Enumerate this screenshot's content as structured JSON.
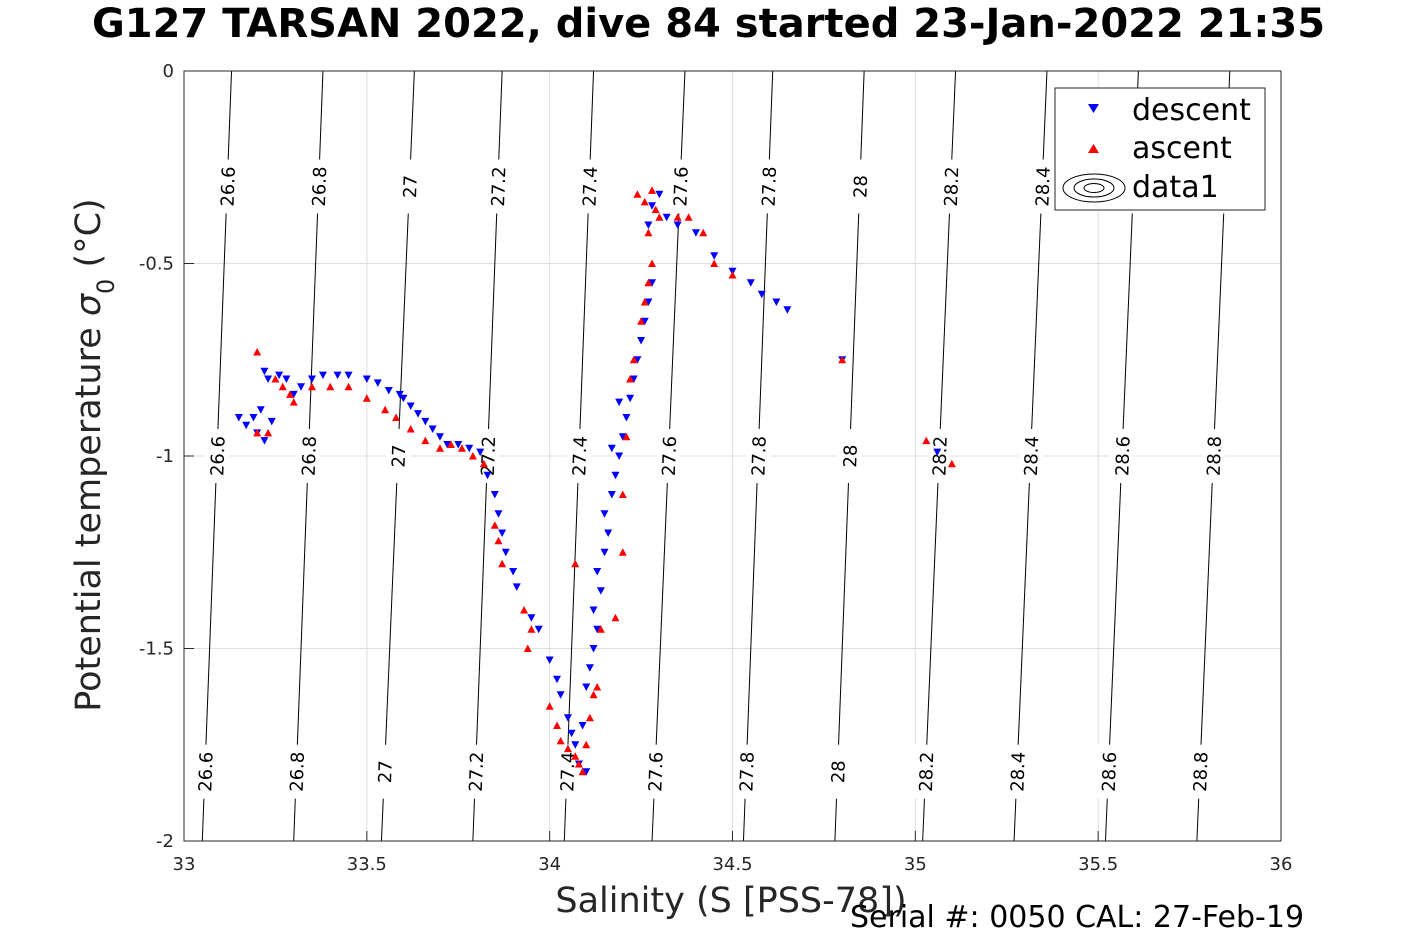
{
  "chart_data": {
    "type": "scatter",
    "title": "G127 TARSAN 2022, dive 84 started 23-Jan-2022 21:35",
    "xlabel": "Salinity (S [PSS-78])",
    "ylabel_main": "Potential temperature ",
    "ylabel_sigma": "σ",
    "ylabel_sub": "0",
    "ylabel_unit": " (°C)",
    "footer": "Serial #: 0050  CAL: 27-Feb-19",
    "xlim": [
      33,
      36
    ],
    "ylim": [
      -2,
      0
    ],
    "x_ticks": [
      "33",
      "33.5",
      "34",
      "34.5",
      "35",
      "35.5",
      "36"
    ],
    "y_ticks": [
      "0",
      "-0.5",
      "-1",
      "-1.5",
      "-2"
    ],
    "grid": true,
    "legend": {
      "position": "top-right",
      "entries": [
        {
          "label": "descent",
          "color": "#0000ff",
          "marker": "triangle-down"
        },
        {
          "label": "ascent",
          "color": "#ff0000",
          "marker": "triangle-up"
        },
        {
          "label": "data1",
          "color": "#000000",
          "marker": "contour"
        }
      ]
    },
    "contours": {
      "levels": [
        "26.6",
        "26.8",
        "27",
        "27.2",
        "27.4",
        "27.6",
        "27.8",
        "28",
        "28.2",
        "28.4",
        "28.6",
        "28.8"
      ],
      "x_at_top": [
        33.13,
        33.38,
        33.63,
        33.87,
        34.12,
        34.37,
        34.61,
        34.86,
        35.11,
        35.36,
        35.61,
        35.86
      ],
      "x_at_bottom": [
        33.05,
        33.3,
        33.54,
        33.79,
        34.04,
        34.28,
        34.53,
        34.78,
        35.02,
        35.27,
        35.52,
        35.77
      ]
    },
    "series": [
      {
        "name": "descent",
        "color": "#0000ff",
        "marker": "triangle-down",
        "points": [
          [
            33.15,
            -0.9
          ],
          [
            33.17,
            -0.92
          ],
          [
            33.19,
            -0.9
          ],
          [
            33.2,
            -0.94
          ],
          [
            33.22,
            -0.96
          ],
          [
            33.21,
            -0.88
          ],
          [
            33.24,
            -0.91
          ],
          [
            33.22,
            -0.78
          ],
          [
            33.23,
            -0.8
          ],
          [
            33.26,
            -0.79
          ],
          [
            33.28,
            -0.8
          ],
          [
            33.3,
            -0.84
          ],
          [
            33.32,
            -0.82
          ],
          [
            33.35,
            -0.8
          ],
          [
            33.38,
            -0.79
          ],
          [
            33.42,
            -0.79
          ],
          [
            33.45,
            -0.79
          ],
          [
            33.5,
            -0.8
          ],
          [
            33.53,
            -0.81
          ],
          [
            33.56,
            -0.83
          ],
          [
            33.59,
            -0.84
          ],
          [
            33.6,
            -0.85
          ],
          [
            33.62,
            -0.87
          ],
          [
            33.64,
            -0.89
          ],
          [
            33.66,
            -0.91
          ],
          [
            33.68,
            -0.93
          ],
          [
            33.7,
            -0.95
          ],
          [
            33.72,
            -0.97
          ],
          [
            33.75,
            -0.97
          ],
          [
            33.78,
            -0.98
          ],
          [
            33.81,
            -0.99
          ],
          [
            33.83,
            -1.05
          ],
          [
            33.85,
            -1.1
          ],
          [
            33.86,
            -1.15
          ],
          [
            33.87,
            -1.2
          ],
          [
            33.88,
            -1.25
          ],
          [
            33.9,
            -1.3
          ],
          [
            33.91,
            -1.34
          ],
          [
            33.95,
            -1.42
          ],
          [
            33.97,
            -1.45
          ],
          [
            34.0,
            -1.53
          ],
          [
            34.02,
            -1.58
          ],
          [
            34.03,
            -1.62
          ],
          [
            34.05,
            -1.68
          ],
          [
            34.06,
            -1.72
          ],
          [
            34.07,
            -1.75
          ],
          [
            34.08,
            -1.8
          ],
          [
            34.1,
            -1.82
          ],
          [
            34.09,
            -1.7
          ],
          [
            34.1,
            -1.6
          ],
          [
            34.11,
            -1.55
          ],
          [
            34.12,
            -1.5
          ],
          [
            34.13,
            -1.45
          ],
          [
            34.12,
            -1.4
          ],
          [
            34.14,
            -1.35
          ],
          [
            34.13,
            -1.3
          ],
          [
            34.15,
            -1.25
          ],
          [
            34.16,
            -1.2
          ],
          [
            34.15,
            -1.15
          ],
          [
            34.17,
            -1.1
          ],
          [
            34.18,
            -1.05
          ],
          [
            34.19,
            -1.0
          ],
          [
            34.2,
            -0.95
          ],
          [
            34.21,
            -0.9
          ],
          [
            34.22,
            -0.85
          ],
          [
            34.23,
            -0.8
          ],
          [
            34.24,
            -0.75
          ],
          [
            34.25,
            -0.7
          ],
          [
            34.26,
            -0.65
          ],
          [
            34.27,
            -0.6
          ],
          [
            34.28,
            -0.55
          ],
          [
            34.27,
            -0.4
          ],
          [
            34.28,
            -0.35
          ],
          [
            34.3,
            -0.32
          ],
          [
            34.32,
            -0.38
          ],
          [
            34.35,
            -0.4
          ],
          [
            34.4,
            -0.42
          ],
          [
            34.45,
            -0.48
          ],
          [
            34.5,
            -0.52
          ],
          [
            34.55,
            -0.55
          ],
          [
            34.58,
            -0.58
          ],
          [
            34.62,
            -0.6
          ],
          [
            34.65,
            -0.62
          ],
          [
            34.8,
            -0.75
          ],
          [
            35.06,
            -0.99
          ],
          [
            34.19,
            -0.86
          ],
          [
            34.17,
            -0.98
          ]
        ]
      },
      {
        "name": "ascent",
        "color": "#ff0000",
        "marker": "triangle-up",
        "points": [
          [
            33.2,
            -0.73
          ],
          [
            33.2,
            -0.94
          ],
          [
            33.23,
            -0.94
          ],
          [
            33.25,
            -0.8
          ],
          [
            33.27,
            -0.82
          ],
          [
            33.29,
            -0.84
          ],
          [
            33.3,
            -0.86
          ],
          [
            33.35,
            -0.82
          ],
          [
            33.4,
            -0.82
          ],
          [
            33.45,
            -0.82
          ],
          [
            33.5,
            -0.85
          ],
          [
            33.55,
            -0.88
          ],
          [
            33.58,
            -0.9
          ],
          [
            33.62,
            -0.93
          ],
          [
            33.66,
            -0.96
          ],
          [
            33.7,
            -0.98
          ],
          [
            33.73,
            -0.97
          ],
          [
            33.76,
            -0.98
          ],
          [
            33.79,
            -1.0
          ],
          [
            33.82,
            -1.02
          ],
          [
            33.85,
            -1.18
          ],
          [
            33.86,
            -1.22
          ],
          [
            33.87,
            -1.28
          ],
          [
            33.93,
            -1.4
          ],
          [
            33.95,
            -1.45
          ],
          [
            33.94,
            -1.5
          ],
          [
            34.0,
            -1.65
          ],
          [
            34.02,
            -1.7
          ],
          [
            34.03,
            -1.74
          ],
          [
            34.05,
            -1.76
          ],
          [
            34.07,
            -1.78
          ],
          [
            34.08,
            -1.8
          ],
          [
            34.09,
            -1.82
          ],
          [
            34.1,
            -1.75
          ],
          [
            34.11,
            -1.68
          ],
          [
            34.12,
            -1.62
          ],
          [
            34.13,
            -1.6
          ],
          [
            34.07,
            -1.28
          ],
          [
            34.14,
            -1.45
          ],
          [
            34.18,
            -1.42
          ],
          [
            34.2,
            -1.25
          ],
          [
            34.2,
            -1.1
          ],
          [
            34.21,
            -0.95
          ],
          [
            34.22,
            -0.8
          ],
          [
            34.23,
            -0.75
          ],
          [
            34.25,
            -0.65
          ],
          [
            34.26,
            -0.6
          ],
          [
            34.27,
            -0.55
          ],
          [
            34.28,
            -0.5
          ],
          [
            34.24,
            -0.32
          ],
          [
            34.26,
            -0.34
          ],
          [
            34.28,
            -0.31
          ],
          [
            34.29,
            -0.36
          ],
          [
            34.3,
            -0.38
          ],
          [
            34.27,
            -0.42
          ],
          [
            34.35,
            -0.38
          ],
          [
            34.38,
            -0.38
          ],
          [
            34.42,
            -0.42
          ],
          [
            34.45,
            -0.5
          ],
          [
            34.5,
            -0.53
          ],
          [
            34.8,
            -0.75
          ],
          [
            35.03,
            -0.96
          ],
          [
            35.1,
            -1.02
          ]
        ]
      }
    ]
  }
}
